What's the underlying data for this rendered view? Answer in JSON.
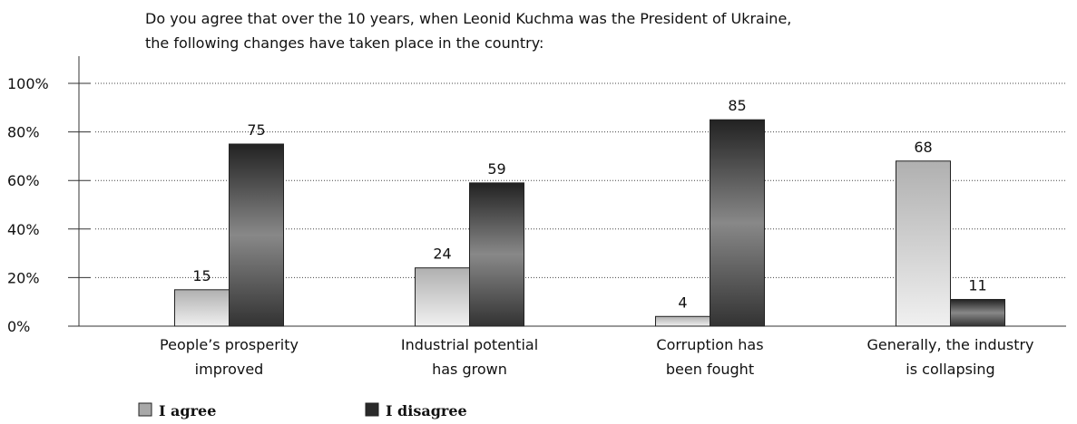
{
  "chart_data": {
    "type": "bar",
    "title": "Do you agree that over the 10 years, when Leonid Kuchma was the President of Ukraine,\nthe following changes have taken place in the country:",
    "categories": [
      "People’s prosperity\nimproved",
      "Industrial potential\nhas grown",
      "Corruption has\nbeen fought",
      "Generally, the industry\nis collapsing"
    ],
    "series": [
      {
        "name": "I agree",
        "color": "#a8a8a8",
        "values": [
          15,
          24,
          4,
          68
        ]
      },
      {
        "name": "I disagree",
        "color": "#2a2a2a",
        "values": [
          75,
          59,
          85,
          11
        ]
      }
    ],
    "ylim": [
      0,
      100
    ],
    "yticks": [
      {
        "value": 0,
        "label": "0%"
      },
      {
        "value": 20,
        "label": "20%"
      },
      {
        "value": 40,
        "label": "40%"
      },
      {
        "value": 60,
        "label": "60%"
      },
      {
        "value": 80,
        "label": "80%"
      },
      {
        "value": 100,
        "label": "100%"
      }
    ],
    "grid": true
  }
}
